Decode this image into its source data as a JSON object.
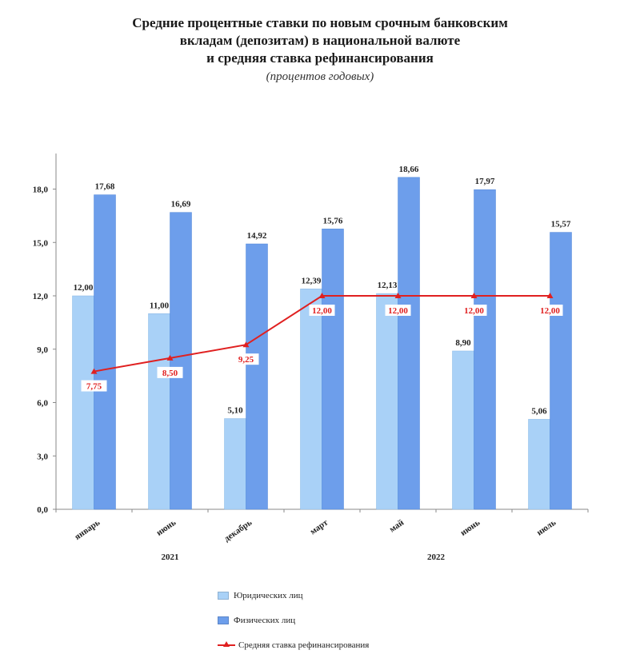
{
  "title": {
    "line1": "Средние процентные ставки по новым срочным банковским",
    "line2": "вкладам (депозитам) в национальной валюте",
    "line3": "и средняя ставка рефинансирования",
    "subtitle": "(процентов годовых)"
  },
  "chart_data": {
    "type": "bar",
    "categories": [
      "январь",
      "июнь",
      "декабрь",
      "март",
      "май",
      "июнь",
      "июль"
    ],
    "year_groups": [
      {
        "label": "2021",
        "from": 0,
        "to": 2
      },
      {
        "label": "2022",
        "from": 3,
        "to": 6
      }
    ],
    "series": [
      {
        "name": "Юридических лиц",
        "kind": "bar",
        "color": "#a9d1f7",
        "values": [
          12.0,
          11.0,
          5.1,
          12.39,
          12.13,
          8.9,
          5.06
        ],
        "labels": [
          "12,00",
          "11,00",
          "5,10",
          "12,39",
          "12,13",
          "8,90",
          "5,06"
        ]
      },
      {
        "name": "Физических лиц",
        "kind": "bar",
        "color": "#6d9eeb",
        "values": [
          17.68,
          16.69,
          14.92,
          15.76,
          18.66,
          17.97,
          15.57
        ],
        "labels": [
          "17,68",
          "16,69",
          "14,92",
          "15,76",
          "18,66",
          "17,97",
          "15,57"
        ]
      },
      {
        "name": "Средняя ставка рефинансирования",
        "kind": "line",
        "color": "#e02020",
        "values": [
          7.75,
          8.5,
          9.25,
          12.0,
          12.0,
          12.0,
          12.0
        ],
        "labels": [
          "7,75",
          "8,50",
          "9,25",
          "12,00",
          "12,00",
          "12,00",
          "12,00"
        ]
      }
    ],
    "yticks": [
      "0,0",
      "3,0",
      "6,0",
      "9,0",
      "12,0",
      "15,0",
      "18,0"
    ],
    "ylim": [
      0,
      20
    ],
    "grid": false,
    "legend_position": "bottom"
  }
}
